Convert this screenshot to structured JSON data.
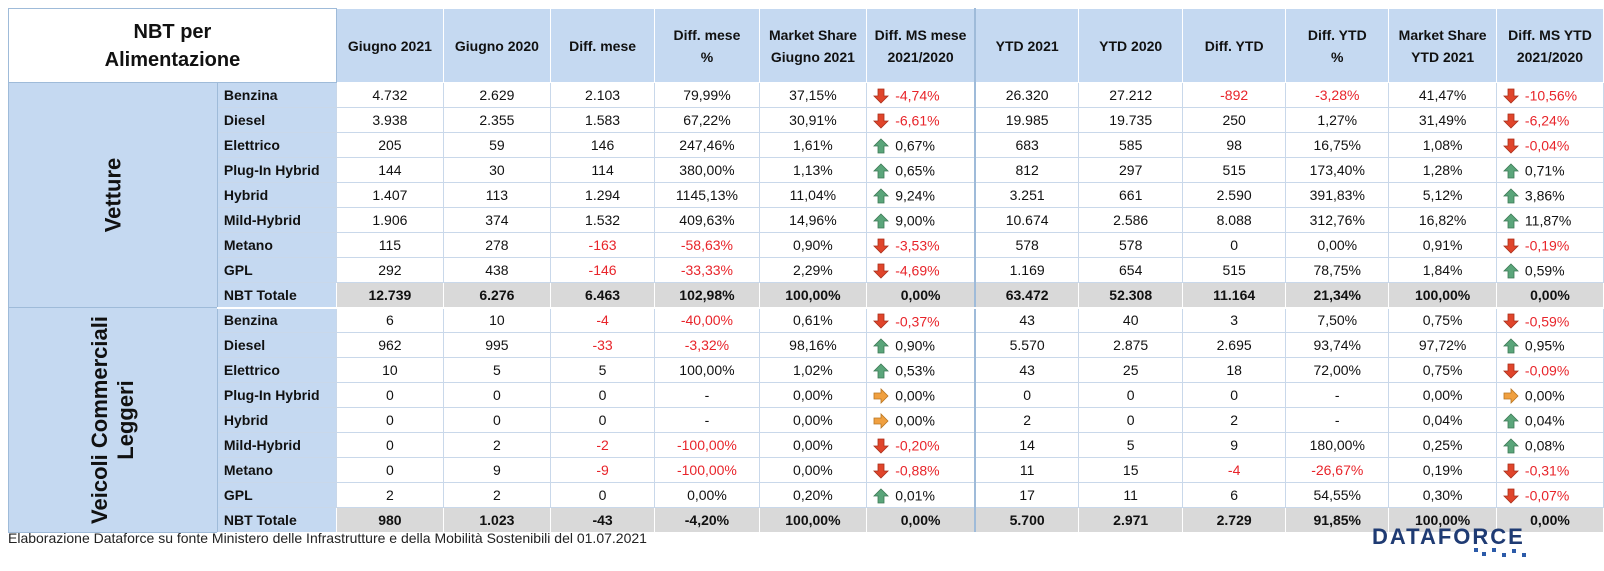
{
  "header": {
    "corner": "NBT per Alimentazione",
    "columns": [
      "Giugno 2021",
      "Giugno 2020",
      "Diff. mese",
      "Diff. mese %",
      "Market Share Giugno 2021",
      "Diff. MS mese 2021/2020",
      "YTD 2021",
      "YTD 2020",
      "Diff. YTD",
      "Diff. YTD %",
      "Market Share YTD 2021",
      "Diff. MS YTD 2021/2020"
    ]
  },
  "groups": [
    {
      "label": "Vetture",
      "rows": [
        {
          "fuel": "Benzina",
          "cells": [
            "4.732",
            "2.629",
            "2.103",
            "79,99%",
            "37,15%",
            "-4,74%",
            "26.320",
            "27.212",
            "-892",
            "-3,28%",
            "41,47%",
            "-10,56%"
          ],
          "arrows": [
            "down",
            "down"
          ]
        },
        {
          "fuel": "Diesel",
          "cells": [
            "3.938",
            "2.355",
            "1.583",
            "67,22%",
            "30,91%",
            "-6,61%",
            "19.985",
            "19.735",
            "250",
            "1,27%",
            "31,49%",
            "-6,24%"
          ],
          "arrows": [
            "down",
            "down"
          ]
        },
        {
          "fuel": "Elettrico",
          "cells": [
            "205",
            "59",
            "146",
            "247,46%",
            "1,61%",
            "0,67%",
            "683",
            "585",
            "98",
            "16,75%",
            "1,08%",
            "-0,04%"
          ],
          "arrows": [
            "up",
            "down"
          ]
        },
        {
          "fuel": "Plug-In Hybrid",
          "cells": [
            "144",
            "30",
            "114",
            "380,00%",
            "1,13%",
            "0,65%",
            "812",
            "297",
            "515",
            "173,40%",
            "1,28%",
            "0,71%"
          ],
          "arrows": [
            "up",
            "up"
          ]
        },
        {
          "fuel": "Hybrid",
          "cells": [
            "1.407",
            "113",
            "1.294",
            "1145,13%",
            "11,04%",
            "9,24%",
            "3.251",
            "661",
            "2.590",
            "391,83%",
            "5,12%",
            "3,86%"
          ],
          "arrows": [
            "up",
            "up"
          ]
        },
        {
          "fuel": "Mild-Hybrid",
          "cells": [
            "1.906",
            "374",
            "1.532",
            "409,63%",
            "14,96%",
            "9,00%",
            "10.674",
            "2.586",
            "8.088",
            "312,76%",
            "16,82%",
            "11,87%"
          ],
          "arrows": [
            "up",
            "up"
          ]
        },
        {
          "fuel": "Metano",
          "cells": [
            "115",
            "278",
            "-163",
            "-58,63%",
            "0,90%",
            "-3,53%",
            "578",
            "578",
            "0",
            "0,00%",
            "0,91%",
            "-0,19%"
          ],
          "arrows": [
            "down",
            "down"
          ]
        },
        {
          "fuel": "GPL",
          "cells": [
            "292",
            "438",
            "-146",
            "-33,33%",
            "2,29%",
            "-4,69%",
            "1.169",
            "654",
            "515",
            "78,75%",
            "1,84%",
            "0,59%"
          ],
          "arrows": [
            "down",
            "up"
          ]
        }
      ],
      "total": {
        "fuel": "NBT Totale",
        "cells": [
          "12.739",
          "6.276",
          "6.463",
          "102,98%",
          "100,00%",
          "0,00%",
          "63.472",
          "52.308",
          "11.164",
          "21,34%",
          "100,00%",
          "0,00%"
        ]
      }
    },
    {
      "label": "Veicoli Commerciali Leggeri",
      "rows": [
        {
          "fuel": "Benzina",
          "cells": [
            "6",
            "10",
            "-4",
            "-40,00%",
            "0,61%",
            "-0,37%",
            "43",
            "40",
            "3",
            "7,50%",
            "0,75%",
            "-0,59%"
          ],
          "arrows": [
            "down",
            "down"
          ]
        },
        {
          "fuel": "Diesel",
          "cells": [
            "962",
            "995",
            "-33",
            "-3,32%",
            "98,16%",
            "0,90%",
            "5.570",
            "2.875",
            "2.695",
            "93,74%",
            "97,72%",
            "0,95%"
          ],
          "arrows": [
            "up",
            "up"
          ]
        },
        {
          "fuel": "Elettrico",
          "cells": [
            "10",
            "5",
            "5",
            "100,00%",
            "1,02%",
            "0,53%",
            "43",
            "25",
            "18",
            "72,00%",
            "0,75%",
            "-0,09%"
          ],
          "arrows": [
            "up",
            "down"
          ]
        },
        {
          "fuel": "Plug-In Hybrid",
          "cells": [
            "0",
            "0",
            "0",
            "-",
            "0,00%",
            "0,00%",
            "0",
            "0",
            "0",
            "-",
            "0,00%",
            "0,00%"
          ],
          "arrows": [
            "right",
            "right"
          ]
        },
        {
          "fuel": "Hybrid",
          "cells": [
            "0",
            "0",
            "0",
            "-",
            "0,00%",
            "0,00%",
            "2",
            "0",
            "2",
            "-",
            "0,04%",
            "0,04%"
          ],
          "arrows": [
            "right",
            "up"
          ]
        },
        {
          "fuel": "Mild-Hybrid",
          "cells": [
            "0",
            "2",
            "-2",
            "-100,00%",
            "0,00%",
            "-0,20%",
            "14",
            "5",
            "9",
            "180,00%",
            "0,25%",
            "0,08%"
          ],
          "arrows": [
            "down",
            "up"
          ]
        },
        {
          "fuel": "Metano",
          "cells": [
            "0",
            "9",
            "-9",
            "-100,00%",
            "0,00%",
            "-0,88%",
            "11",
            "15",
            "-4",
            "-26,67%",
            "0,19%",
            "-0,31%"
          ],
          "arrows": [
            "down",
            "down"
          ]
        },
        {
          "fuel": "GPL",
          "cells": [
            "2",
            "2",
            "0",
            "0,00%",
            "0,20%",
            "0,01%",
            "17",
            "11",
            "6",
            "54,55%",
            "0,30%",
            "-0,07%"
          ],
          "arrows": [
            "up",
            "down"
          ]
        }
      ],
      "total": {
        "fuel": "NBT Totale",
        "cells": [
          "980",
          "1.023",
          "-43",
          "-4,20%",
          "100,00%",
          "0,00%",
          "5.700",
          "2.971",
          "2.729",
          "91,85%",
          "100,00%",
          "0,00%"
        ]
      }
    }
  ],
  "footer": {
    "source": "Elaborazione Dataforce su fonte Ministero delle Infrastrutture e della Mobilità Sostenibili del 01.07.2021",
    "logo": "DATAFORCE"
  },
  "colors": {
    "header_blue": "#c5d9f1",
    "total_gray": "#d9d9d9",
    "negative_red": "#e8242a",
    "arrow_up_green": "#5aa57a",
    "arrow_down_red": "#e0452b",
    "arrow_right_orange": "#f0a040",
    "logo_navy": "#1f3b73"
  },
  "icons": {
    "up": "arrow-up-icon",
    "down": "arrow-down-icon",
    "right": "arrow-right-icon"
  }
}
